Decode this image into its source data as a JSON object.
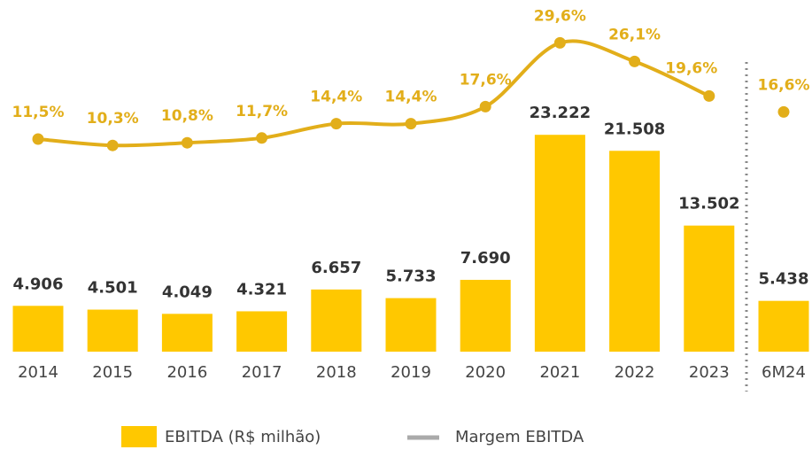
{
  "chart_data": {
    "type": "bar_line",
    "categories": [
      "2014",
      "2015",
      "2016",
      "2017",
      "2018",
      "2019",
      "2020",
      "2021",
      "2022",
      "2023",
      "6M24"
    ],
    "series": [
      {
        "name": "EBITDA (R$ milhão)",
        "type": "bar",
        "color": "#ffc800",
        "values": [
          4906,
          4501,
          4049,
          4321,
          6657,
          5733,
          7690,
          23222,
          21508,
          13502,
          5438
        ],
        "value_labels": [
          "4.906",
          "4.501",
          "4.049",
          "4.321",
          "6.657",
          "5.733",
          "7.690",
          "23.222",
          "21.508",
          "13.502",
          "5.438"
        ]
      },
      {
        "name": "Margem EBITDA",
        "type": "line",
        "axis": "y2",
        "color": "#e2ae1a",
        "values": [
          11.5,
          10.3,
          10.8,
          11.7,
          14.4,
          14.4,
          17.6,
          29.6,
          26.1,
          19.6,
          16.6
        ],
        "value_labels": [
          "11,5%",
          "10,3%",
          "10,8%",
          "11,7%",
          "14,4%",
          "14,4%",
          "17,6%",
          "29,6%",
          "26,1%",
          "19,6%",
          "16,6%"
        ]
      }
    ],
    "partial_last": true,
    "ylim": [
      0,
      24000
    ],
    "y2lim": [
      0,
      30
    ],
    "legend": "bottom"
  }
}
